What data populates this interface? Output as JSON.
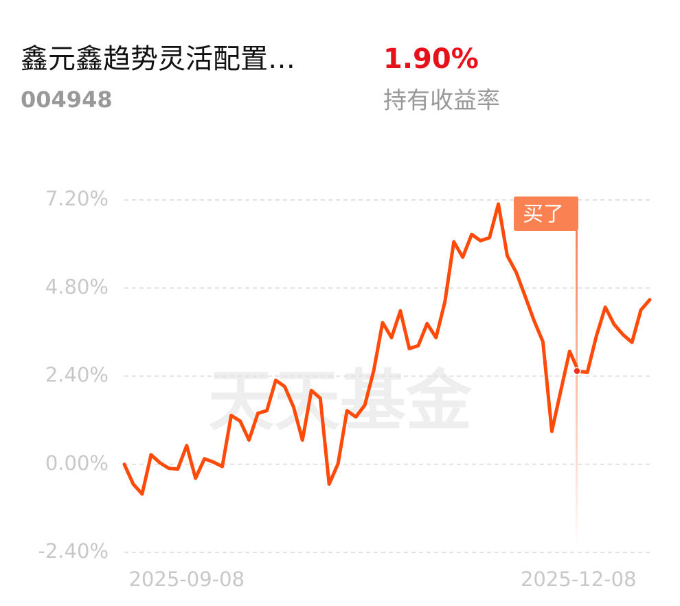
{
  "header": {
    "fund_name": "鑫元鑫趋势灵活配置…",
    "fund_code": "004948",
    "return_value": "1.90%",
    "return_label": "持有收益率"
  },
  "chart_data": {
    "type": "line",
    "watermark": "天天基金",
    "annotation": "买了",
    "categories": [
      null,
      null,
      null,
      null,
      null,
      null,
      null,
      "2025-09-08",
      null,
      null,
      null,
      null,
      null,
      null,
      null,
      null,
      null,
      null,
      null,
      null,
      null,
      null,
      null,
      null,
      null,
      null,
      null,
      null,
      null,
      null,
      null,
      null,
      null,
      null,
      null,
      null,
      null,
      null,
      null,
      null,
      null,
      null,
      null,
      null,
      null,
      null,
      null,
      null,
      null,
      null,
      null,
      "2025-12-08",
      null,
      null,
      null,
      null,
      null,
      null,
      null,
      null
    ],
    "series": [
      {
        "color": "#ff4a0a",
        "values": [
          0,
          -0.54,
          -0.81,
          0.26,
          0.04,
          -0.11,
          -0.13,
          0.51,
          -0.38,
          0.15,
          0.06,
          -0.06,
          1.33,
          1.18,
          0.66,
          1.39,
          1.46,
          2.29,
          2.12,
          1.56,
          0.66,
          2.01,
          1.8,
          -0.54,
          0.02,
          1.46,
          1.29,
          1.61,
          2.55,
          3.86,
          3.45,
          4.18,
          3.15,
          3.23,
          3.83,
          3.45,
          4.43,
          6.06,
          5.64,
          6.26,
          6.09,
          6.17,
          7.09,
          5.68,
          5.23,
          4.58,
          3.92,
          3.34,
          0.9,
          1.99,
          3.08,
          2.53,
          2.51,
          3.49,
          4.28,
          3.81,
          3.53,
          3.32,
          4.2,
          4.48
        ]
      }
    ],
    "ylim": [
      -2.4,
      7.2
    ],
    "yticks": [
      {
        "value": 7.2,
        "label": "7.20%"
      },
      {
        "value": 4.8,
        "label": "4.80%"
      },
      {
        "value": 2.4,
        "label": "2.40%"
      },
      {
        "value": 0,
        "label": "0.00%"
      },
      {
        "value": -2.4,
        "label": "-2.40%"
      }
    ],
    "grid": true
  }
}
